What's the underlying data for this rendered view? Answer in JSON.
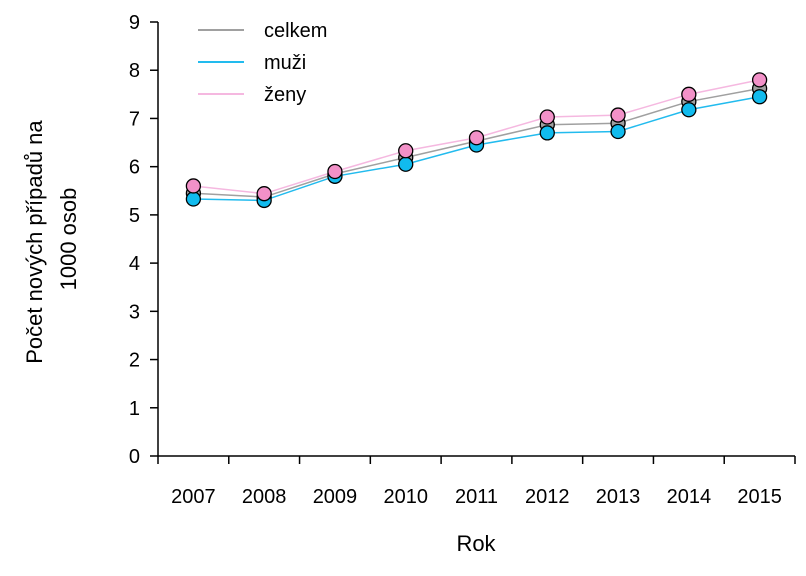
{
  "chart_data": {
    "type": "line",
    "title": "",
    "xlabel": "Rok",
    "ylabel_lines": [
      "Počet nových případů na",
      "1000 osob"
    ],
    "categories": [
      "2007",
      "2008",
      "2009",
      "2010",
      "2011",
      "2012",
      "2013",
      "2014",
      "2015"
    ],
    "ylim": [
      0,
      9
    ],
    "yticks": [
      "0",
      "1",
      "2",
      "3",
      "4",
      "5",
      "6",
      "7",
      "8",
      "9"
    ],
    "grid": false,
    "legend_position": "top-left",
    "series": [
      {
        "name": "celkem",
        "color": "#a0a0a0",
        "marker_fill": "#a0a0a0",
        "values": [
          5.45,
          5.37,
          5.85,
          6.19,
          6.53,
          6.87,
          6.9,
          7.35,
          7.62
        ]
      },
      {
        "name": "muži",
        "color": "#22bbee",
        "marker_fill": "#11bbee",
        "values": [
          5.33,
          5.3,
          5.8,
          6.05,
          6.45,
          6.7,
          6.73,
          7.18,
          7.45
        ]
      },
      {
        "name": "ženy",
        "color": "#f5b8e0",
        "marker_fill": "#f291c8",
        "values": [
          5.6,
          5.44,
          5.9,
          6.33,
          6.6,
          7.03,
          7.07,
          7.5,
          7.8
        ]
      }
    ]
  }
}
